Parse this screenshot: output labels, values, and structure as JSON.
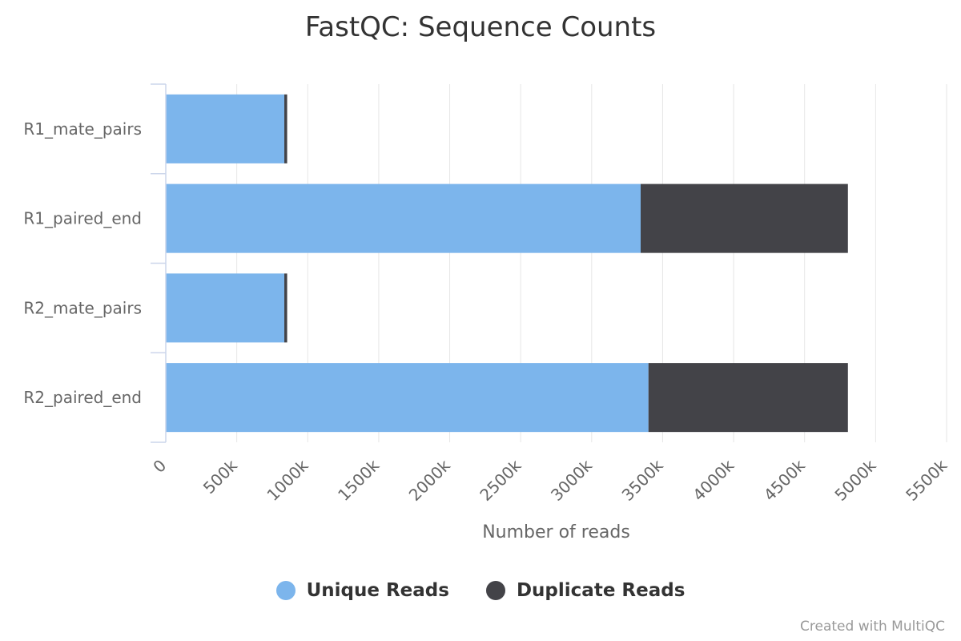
{
  "chart_data": {
    "type": "bar",
    "orientation": "horizontal",
    "stacked": true,
    "title": "FastQC: Sequence Counts",
    "xlabel": "Number of reads",
    "ylabel": "",
    "categories": [
      "R1_mate_pairs",
      "R1_paired_end",
      "R2_mate_pairs",
      "R2_paired_end"
    ],
    "series": [
      {
        "name": "Unique Reads",
        "color": "#7cb5ec",
        "values": [
          835000,
          3345000,
          835000,
          3400000
        ]
      },
      {
        "name": "Duplicate Reads",
        "color": "#434348",
        "values": [
          20000,
          1460000,
          20000,
          1405000
        ]
      }
    ],
    "xlim": [
      0,
      5500000
    ],
    "xticks": [
      0,
      500000,
      1000000,
      1500000,
      2000000,
      2500000,
      3000000,
      3500000,
      4000000,
      4500000,
      5000000,
      5500000
    ],
    "xtick_labels": [
      "0",
      "500k",
      "1000k",
      "1500k",
      "2000k",
      "2500k",
      "3000k",
      "3500k",
      "4000k",
      "4500k",
      "5000k",
      "5500k"
    ],
    "grid": true,
    "legend_position": "bottom-center"
  },
  "footer": {
    "credit": "Created with MultiQC"
  }
}
